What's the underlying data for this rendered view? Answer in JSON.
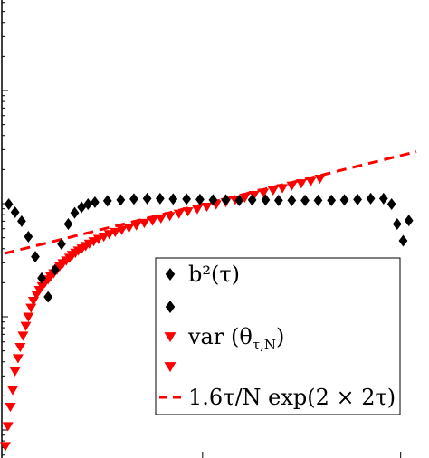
{
  "chart_data": {
    "type": "scatter",
    "title": "",
    "xlabel": "",
    "ylabel": "",
    "x_scale": "log",
    "y_scale": "log",
    "xlim": [
      0.01,
      1.2
    ],
    "ylim": [
      1e-05,
      1
    ],
    "grid": false,
    "legend_position": "lower-right",
    "series": [
      {
        "name": "b²(τ)",
        "marker": "diamond",
        "color": "#000000",
        "x": [
          0.0105,
          0.0113,
          0.0122,
          0.0132,
          0.0143,
          0.0154,
          0.0166,
          0.018,
          0.0194,
          0.021,
          0.0226,
          0.0245,
          0.0264,
          0.0286,
          0.0331,
          0.0386,
          0.045,
          0.0525,
          0.061,
          0.071,
          0.083,
          0.097,
          0.113,
          0.131,
          0.153,
          0.178,
          0.208,
          0.242,
          0.282,
          0.329,
          0.383,
          0.447,
          0.52,
          0.606,
          0.706,
          0.82,
          0.9,
          0.96,
          1.03,
          1.1
        ],
        "y": [
          0.0099,
          0.0084,
          0.007,
          0.0051,
          0.0034,
          0.0022,
          0.0015,
          0.0026,
          0.0044,
          0.0066,
          0.0083,
          0.0093,
          0.0099,
          0.0103,
          0.0106,
          0.0108,
          0.011,
          0.0111,
          0.0111,
          0.011,
          0.011,
          0.0109,
          0.0108,
          0.0108,
          0.0107,
          0.0108,
          0.0108,
          0.0107,
          0.0107,
          0.0107,
          0.0107,
          0.0107,
          0.0108,
          0.0109,
          0.0111,
          0.0111,
          0.0099,
          0.0066,
          0.0047,
          0.0071
        ]
      },
      {
        "name": "",
        "marker": "diamond",
        "color": "#000000",
        "x": [],
        "y": []
      },
      {
        "name": "var (θτ,N)",
        "marker": "triangle-down",
        "color": "#ff0000",
        "x": [
          0.0101,
          0.0104,
          0.0107,
          0.011,
          0.0113,
          0.0117,
          0.012,
          0.0124,
          0.0128,
          0.0132,
          0.0136,
          0.014,
          0.0145,
          0.015,
          0.0155,
          0.016,
          0.0166,
          0.0171,
          0.0177,
          0.0184,
          0.019,
          0.0197,
          0.0205,
          0.0213,
          0.022,
          0.0228,
          0.0236,
          0.0246,
          0.0257,
          0.0268,
          0.0282,
          0.0298,
          0.0317,
          0.0338,
          0.0362,
          0.0391,
          0.0425,
          0.0463,
          0.0508,
          0.0559,
          0.0616,
          0.0683,
          0.076,
          0.0843,
          0.094,
          0.105,
          0.117,
          0.131,
          0.146,
          0.163,
          0.182,
          0.203,
          0.227,
          0.253,
          0.282,
          0.315,
          0.352,
          0.391
        ],
        "y": [
          7.2e-05,
          0.000108,
          0.00016,
          0.000225,
          0.00033,
          0.00043,
          0.00054,
          0.00068,
          0.00083,
          0.001,
          0.0012,
          0.00138,
          0.00157,
          0.00172,
          0.00186,
          0.002,
          0.00214,
          0.00228,
          0.00242,
          0.0026,
          0.0028,
          0.00297,
          0.00314,
          0.00332,
          0.00352,
          0.00368,
          0.00385,
          0.00401,
          0.00422,
          0.00443,
          0.00465,
          0.00487,
          0.0051,
          0.00537,
          0.00561,
          0.00586,
          0.00612,
          0.00642,
          0.00674,
          0.00706,
          0.0074,
          0.00777,
          0.00815,
          0.00854,
          0.00895,
          0.00938,
          0.00983,
          0.0103,
          0.0108,
          0.0113,
          0.0119,
          0.0125,
          0.0131,
          0.0137,
          0.0144,
          0.0151,
          0.0158,
          0.0166
        ]
      },
      {
        "name": "",
        "marker": "triangle-down",
        "color": "#ff0000",
        "x": [],
        "y": []
      },
      {
        "name": "1.6τ/N exp(2 × 2τ)",
        "marker": "dashed-line",
        "color": "#ff0000",
        "x": [
          0.01,
          1.2
        ],
        "y": [
          0.00363,
          0.0288
        ]
      }
    ]
  }
}
